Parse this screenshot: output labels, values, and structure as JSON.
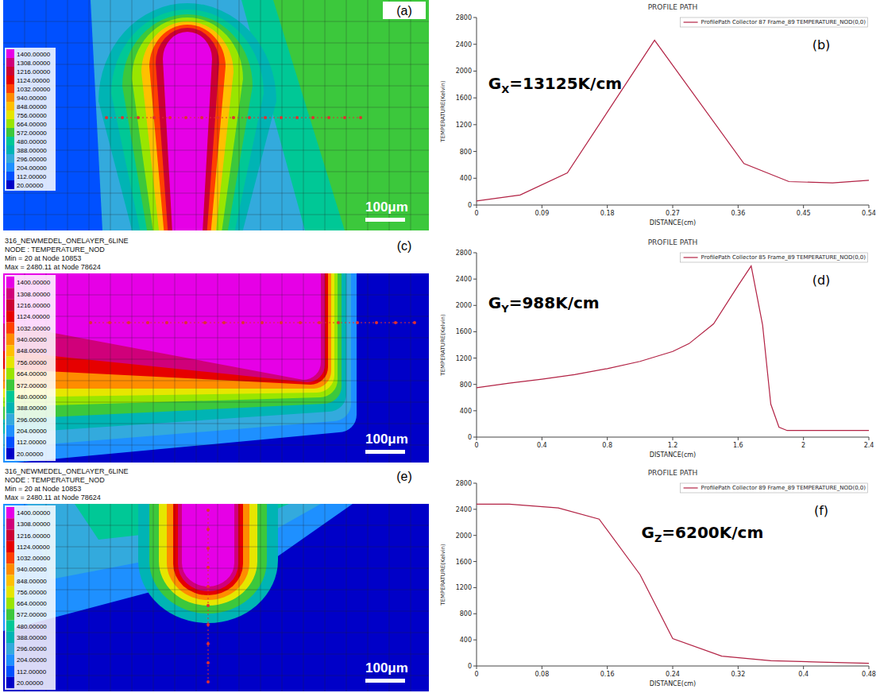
{
  "chart_data": [
    {
      "type": "contour",
      "panel_label": "(a)",
      "colorbar_ticks": [
        {
          "value": 1400,
          "label": "1400.00000"
        },
        {
          "value": 1308,
          "label": "1308.00000"
        },
        {
          "value": 1216,
          "label": "1216.00000"
        },
        {
          "value": 1124,
          "label": "1124.00000"
        },
        {
          "value": 1032,
          "label": "1032.00000"
        },
        {
          "value": 940,
          "label": "940.00000"
        },
        {
          "value": 848,
          "label": "848.00000"
        },
        {
          "value": 756,
          "label": "756.00000"
        },
        {
          "value": 664,
          "label": "664.00000"
        },
        {
          "value": 572,
          "label": "572.00000"
        },
        {
          "value": 480,
          "label": "480.00000"
        },
        {
          "value": 388,
          "label": "388.00000"
        },
        {
          "value": 296,
          "label": "296.00000"
        },
        {
          "value": 204,
          "label": "204.00000"
        },
        {
          "value": 112,
          "label": "112.00000"
        },
        {
          "value": 20,
          "label": "20.00000"
        }
      ],
      "colors": [
        "#e600e6",
        "#d0007a",
        "#cc0033",
        "#e60000",
        "#ff4000",
        "#ff8c00",
        "#ffc000",
        "#e6e600",
        "#99e600",
        "#3cc83c",
        "#00c896",
        "#00b4b4",
        "#33aadd",
        "#1e90ff",
        "#0050ff",
        "#0000c8"
      ],
      "scale_bar": "100μm"
    },
    {
      "type": "line",
      "title": "PROFILE PATH",
      "panel_label": "(b)",
      "x_label": "DISTANCE(cm)",
      "y_label": "TEMPERATURE(Kelvin)",
      "annotation": [
        "G",
        "X",
        "=13125K/cm"
      ],
      "x": [
        0,
        0.06,
        0.125,
        0.245,
        0.368,
        0.43,
        0.49,
        0.54
      ],
      "series": [
        {
          "name": "ProfilePath Collector 87 Frame_89 TEMPERATURE_NOD(0,0)",
          "color": "#b22244",
          "values": [
            60,
            150,
            480,
            2460,
            620,
            350,
            330,
            370
          ]
        }
      ],
      "xlim": [
        0,
        0.54
      ],
      "xticks": [
        0,
        0.09,
        0.18,
        0.27,
        0.36,
        0.45,
        0.54
      ],
      "ylim": [
        0,
        2800
      ],
      "yticks": [
        0,
        400,
        800,
        1200,
        1600,
        2000,
        2400,
        2800
      ],
      "grid": false,
      "legend": "upper right"
    },
    {
      "type": "contour",
      "panel_label": "(c)",
      "header": [
        "316_NEWMEDEL_ONELAYER_6LINE",
        "NODE : TEMPERATURE_NOD",
        "Min = 20 at Node 10853",
        "Max = 2480.11 at Node 78624"
      ],
      "colorbar_ticks": [
        {
          "value": 1400,
          "label": "1400.00000"
        },
        {
          "value": 1308,
          "label": "1308.00000"
        },
        {
          "value": 1216,
          "label": "1216.00000"
        },
        {
          "value": 1124,
          "label": "1124.00000"
        },
        {
          "value": 1032,
          "label": "1032.00000"
        },
        {
          "value": 940,
          "label": "940.00000"
        },
        {
          "value": 848,
          "label": "848.00000"
        },
        {
          "value": 756,
          "label": "756.00000"
        },
        {
          "value": 664,
          "label": "664.00000"
        },
        {
          "value": 572,
          "label": "572.00000"
        },
        {
          "value": 480,
          "label": "480.00000"
        },
        {
          "value": 388,
          "label": "388.00000"
        },
        {
          "value": 296,
          "label": "296.00000"
        },
        {
          "value": 204,
          "label": "204.00000"
        },
        {
          "value": 112,
          "label": "112.00000"
        },
        {
          "value": 20,
          "label": "20.00000"
        }
      ],
      "colors": [
        "#e600e6",
        "#d0007a",
        "#cc0033",
        "#e60000",
        "#ff4000",
        "#ff8c00",
        "#ffc000",
        "#e6e600",
        "#99e600",
        "#3cc83c",
        "#00c896",
        "#00b4b4",
        "#33aadd",
        "#1e90ff",
        "#0050ff",
        "#0000c8"
      ],
      "scale_bar": "100μm"
    },
    {
      "type": "line",
      "title": "PROFILE PATH",
      "panel_label": "(d)",
      "x_label": "DISTANCE(cm)",
      "y_label": "TEMPERATURE(Kelvin)",
      "annotation": [
        "G",
        "Y",
        "=988K/cm"
      ],
      "x": [
        0,
        0.2,
        0.4,
        0.6,
        0.8,
        1.0,
        1.2,
        1.3,
        1.45,
        1.6,
        1.68,
        1.75,
        1.8,
        1.85,
        1.9,
        2.4
      ],
      "series": [
        {
          "name": "ProfilePath Collector 85 Frame_89 TEMPERATURE_NOD(0,0)",
          "color": "#b22244",
          "values": [
            750,
            820,
            880,
            950,
            1040,
            1150,
            1300,
            1420,
            1720,
            2300,
            2600,
            1700,
            500,
            150,
            100,
            100
          ]
        }
      ],
      "xlim": [
        0,
        2.4
      ],
      "xticks": [
        0,
        0.4,
        0.8,
        1.2,
        1.6,
        2,
        2.4
      ],
      "ylim": [
        0,
        2800
      ],
      "yticks": [
        0,
        400,
        800,
        1200,
        1600,
        2000,
        2400,
        2800
      ],
      "grid": false,
      "legend": "upper right"
    },
    {
      "type": "contour",
      "panel_label": "(e)",
      "header": [
        "316_NEWMEDEL_ONELAYER_6LINE",
        "NODE : TEMPERATURE_NOD",
        "Min = 20 at Node 10853",
        "Max = 2480.11 at Node 78624"
      ],
      "colorbar_ticks": [
        {
          "value": 1400,
          "label": "1400.00000"
        },
        {
          "value": 1308,
          "label": "1308.00000"
        },
        {
          "value": 1216,
          "label": "1216.00000"
        },
        {
          "value": 1124,
          "label": "1124.00000"
        },
        {
          "value": 1032,
          "label": "1032.00000"
        },
        {
          "value": 940,
          "label": "940.00000"
        },
        {
          "value": 848,
          "label": "848.00000"
        },
        {
          "value": 756,
          "label": "756.00000"
        },
        {
          "value": 664,
          "label": "664.00000"
        },
        {
          "value": 572,
          "label": "572.00000"
        },
        {
          "value": 480,
          "label": "480.00000"
        },
        {
          "value": 388,
          "label": "388.00000"
        },
        {
          "value": 296,
          "label": "296.00000"
        },
        {
          "value": 204,
          "label": "204.00000"
        },
        {
          "value": 112,
          "label": "112.00000"
        },
        {
          "value": 20,
          "label": "20.00000"
        }
      ],
      "colors": [
        "#e600e6",
        "#d0007a",
        "#cc0033",
        "#e60000",
        "#ff4000",
        "#ff8c00",
        "#ffc000",
        "#e6e600",
        "#99e600",
        "#3cc83c",
        "#00c896",
        "#00b4b4",
        "#33aadd",
        "#1e90ff",
        "#0050ff",
        "#0000c8"
      ],
      "scale_bar": "100μm"
    },
    {
      "type": "line",
      "title": "PROFILE PATH",
      "panel_label": "(f)",
      "x_label": "DISTANCE(cm)",
      "y_label": "TEMPERATURE(Kelvin)",
      "annotation": [
        "G",
        "Z",
        "=6200K/cm"
      ],
      "x": [
        0,
        0.04,
        0.1,
        0.15,
        0.2,
        0.24,
        0.3,
        0.36,
        0.42,
        0.48
      ],
      "series": [
        {
          "name": "ProfilePath Collector 89 Frame_89 TEMPERATURE_NOD(0,0)",
          "color": "#b22244",
          "values": [
            2480,
            2480,
            2420,
            2250,
            1400,
            420,
            150,
            80,
            60,
            40
          ]
        }
      ],
      "xlim": [
        0,
        0.48
      ],
      "xticks": [
        0,
        0.08,
        0.16,
        0.24,
        0.32,
        0.4,
        0.48
      ],
      "ylim": [
        0,
        2800
      ],
      "yticks": [
        0,
        400,
        800,
        1200,
        1600,
        2000,
        2400,
        2800
      ],
      "grid": false,
      "legend": "upper right"
    }
  ]
}
